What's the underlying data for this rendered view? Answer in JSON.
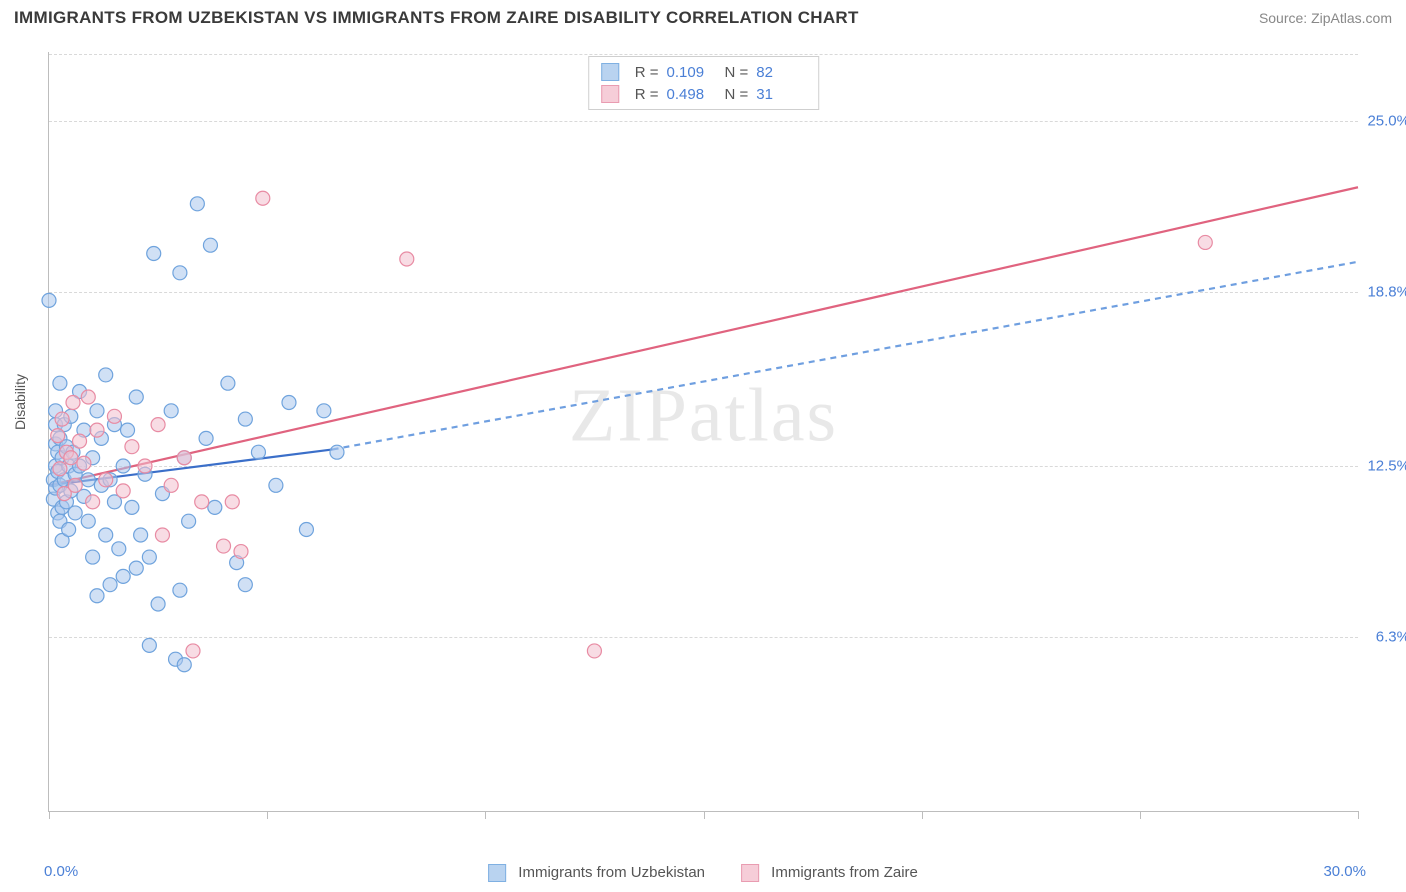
{
  "header": {
    "title": "IMMIGRANTS FROM UZBEKISTAN VS IMMIGRANTS FROM ZAIRE DISABILITY CORRELATION CHART",
    "source": "Source: ZipAtlas.com"
  },
  "watermark": {
    "part1": "ZIP",
    "part2": "atlas"
  },
  "axes": {
    "ylabel": "Disability",
    "x_min_label": "0.0%",
    "x_max_label": "30.0%",
    "x_min": 0.0,
    "x_max": 30.0,
    "y_min": 0.0,
    "y_max": 27.5,
    "x_ticks": [
      0,
      5,
      10,
      15,
      20,
      25,
      30
    ],
    "y_gridlines": [
      {
        "value": 6.3,
        "label": "6.3%"
      },
      {
        "value": 12.5,
        "label": "12.5%"
      },
      {
        "value": 18.8,
        "label": "18.8%"
      },
      {
        "value": 25.0,
        "label": "25.0%"
      }
    ]
  },
  "series": {
    "a": {
      "name": "Immigrants from Uzbekistan",
      "fill": "#a9c7ec",
      "stroke": "#6fa3dd",
      "swatch_fill": "#b9d3f0",
      "swatch_stroke": "#7fb0e2",
      "line_color": "#3b6fc9",
      "line_dash_color": "#6f9fe0",
      "R": "0.109",
      "N": "82",
      "trend": {
        "x1": 0.0,
        "y1": 11.8,
        "x2": 6.5,
        "y2": 13.1,
        "x2_ext": 30.0,
        "y2_ext": 19.9
      },
      "points": [
        [
          0.0,
          18.5
        ],
        [
          0.1,
          12.0
        ],
        [
          0.1,
          11.3
        ],
        [
          0.15,
          11.7
        ],
        [
          0.15,
          13.3
        ],
        [
          0.15,
          14.0
        ],
        [
          0.15,
          14.5
        ],
        [
          0.15,
          12.5
        ],
        [
          0.2,
          10.8
        ],
        [
          0.2,
          13.0
        ],
        [
          0.2,
          12.3
        ],
        [
          0.25,
          10.5
        ],
        [
          0.25,
          11.8
        ],
        [
          0.25,
          13.5
        ],
        [
          0.25,
          15.5
        ],
        [
          0.3,
          11.0
        ],
        [
          0.3,
          12.8
        ],
        [
          0.3,
          9.8
        ],
        [
          0.35,
          14.0
        ],
        [
          0.35,
          12.0
        ],
        [
          0.4,
          11.2
        ],
        [
          0.4,
          13.2
        ],
        [
          0.45,
          10.2
        ],
        [
          0.45,
          12.5
        ],
        [
          0.5,
          14.3
        ],
        [
          0.5,
          11.6
        ],
        [
          0.55,
          13.0
        ],
        [
          0.6,
          12.2
        ],
        [
          0.6,
          10.8
        ],
        [
          0.7,
          15.2
        ],
        [
          0.7,
          12.5
        ],
        [
          0.8,
          11.4
        ],
        [
          0.8,
          13.8
        ],
        [
          0.9,
          12.0
        ],
        [
          0.9,
          10.5
        ],
        [
          1.0,
          9.2
        ],
        [
          1.0,
          12.8
        ],
        [
          1.1,
          14.5
        ],
        [
          1.1,
          7.8
        ],
        [
          1.2,
          11.8
        ],
        [
          1.2,
          13.5
        ],
        [
          1.3,
          10.0
        ],
        [
          1.3,
          15.8
        ],
        [
          1.4,
          8.2
        ],
        [
          1.4,
          12.0
        ],
        [
          1.5,
          11.2
        ],
        [
          1.5,
          14.0
        ],
        [
          1.6,
          9.5
        ],
        [
          1.7,
          8.5
        ],
        [
          1.7,
          12.5
        ],
        [
          1.8,
          13.8
        ],
        [
          1.9,
          11.0
        ],
        [
          2.0,
          15.0
        ],
        [
          2.0,
          8.8
        ],
        [
          2.1,
          10.0
        ],
        [
          2.2,
          12.2
        ],
        [
          2.3,
          6.0
        ],
        [
          2.3,
          9.2
        ],
        [
          2.4,
          20.2
        ],
        [
          2.5,
          7.5
        ],
        [
          2.6,
          11.5
        ],
        [
          2.8,
          14.5
        ],
        [
          2.9,
          5.5
        ],
        [
          3.0,
          19.5
        ],
        [
          3.0,
          8.0
        ],
        [
          3.1,
          12.8
        ],
        [
          3.1,
          5.3
        ],
        [
          3.2,
          10.5
        ],
        [
          3.4,
          22.0
        ],
        [
          3.6,
          13.5
        ],
        [
          3.7,
          20.5
        ],
        [
          3.8,
          11.0
        ],
        [
          4.1,
          15.5
        ],
        [
          4.3,
          9.0
        ],
        [
          4.5,
          14.2
        ],
        [
          4.5,
          8.2
        ],
        [
          4.8,
          13.0
        ],
        [
          5.2,
          11.8
        ],
        [
          5.5,
          14.8
        ],
        [
          5.9,
          10.2
        ],
        [
          6.3,
          14.5
        ],
        [
          6.6,
          13.0
        ]
      ]
    },
    "b": {
      "name": "Immigrants from Zaire",
      "fill": "#f3c0cd",
      "stroke": "#e88ba3",
      "swatch_fill": "#f6cdd8",
      "swatch_stroke": "#e99cb1",
      "line_color": "#e0637f",
      "R": "0.498",
      "N": "31",
      "trend": {
        "x1": 0.0,
        "y1": 11.8,
        "x2": 30.0,
        "y2": 22.6
      },
      "points": [
        [
          0.2,
          13.6
        ],
        [
          0.25,
          12.4
        ],
        [
          0.3,
          14.2
        ],
        [
          0.35,
          11.5
        ],
        [
          0.4,
          13.0
        ],
        [
          0.5,
          12.8
        ],
        [
          0.55,
          14.8
        ],
        [
          0.6,
          11.8
        ],
        [
          0.7,
          13.4
        ],
        [
          0.8,
          12.6
        ],
        [
          0.9,
          15.0
        ],
        [
          1.0,
          11.2
        ],
        [
          1.1,
          13.8
        ],
        [
          1.3,
          12.0
        ],
        [
          1.5,
          14.3
        ],
        [
          1.7,
          11.6
        ],
        [
          1.9,
          13.2
        ],
        [
          2.2,
          12.5
        ],
        [
          2.5,
          14.0
        ],
        [
          2.6,
          10.0
        ],
        [
          2.8,
          11.8
        ],
        [
          3.1,
          12.8
        ],
        [
          3.3,
          5.8
        ],
        [
          3.5,
          11.2
        ],
        [
          4.0,
          9.6
        ],
        [
          4.2,
          11.2
        ],
        [
          4.4,
          9.4
        ],
        [
          4.9,
          22.2
        ],
        [
          8.2,
          20.0
        ],
        [
          12.5,
          5.8
        ],
        [
          26.5,
          20.6
        ]
      ]
    }
  },
  "colors": {
    "grid": "#d9d9d9",
    "axis": "#bdbdbd",
    "text": "#555555",
    "value_text": "#4a7fd6"
  },
  "marker": {
    "radius": 7,
    "fill_opacity": 0.55,
    "stroke_width": 1.2
  },
  "line": {
    "width": 2.2,
    "dash": "6,5"
  }
}
